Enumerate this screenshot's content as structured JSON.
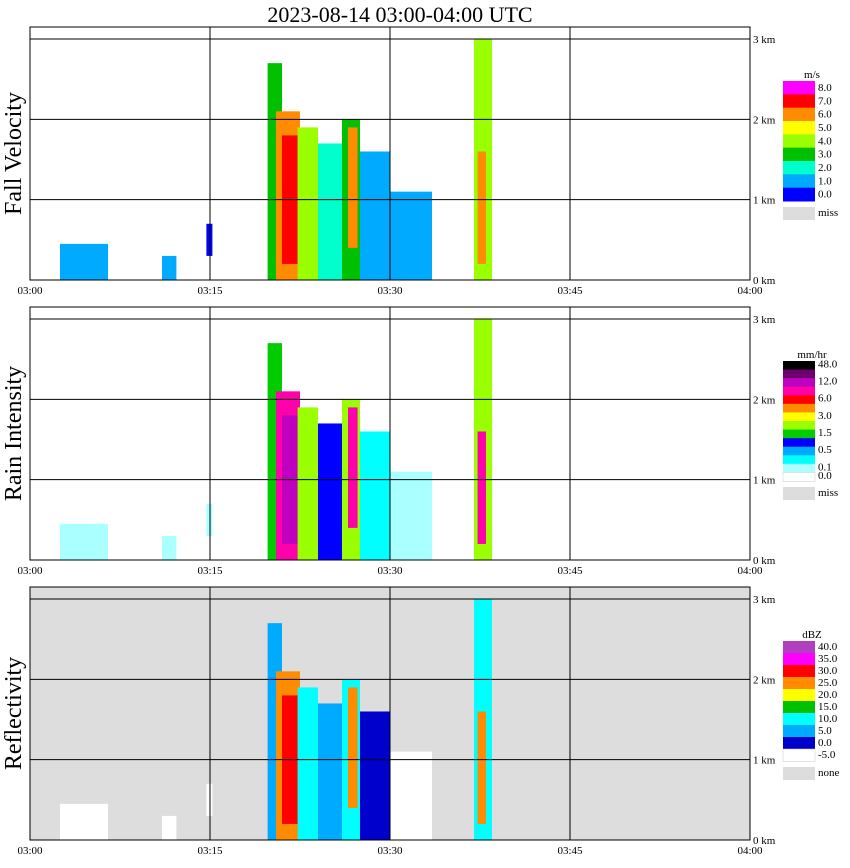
{
  "title": "2023-08-14   03:00-04:00 UTC",
  "x_ticks": [
    "03:00",
    "03:15",
    "03:30",
    "03:45",
    "04:00"
  ],
  "y_ticks": [
    "0 km",
    "1 km",
    "2 km",
    "3 km"
  ],
  "chart_data": [
    {
      "type": "heatmap",
      "ylabel": "Fall Velocity",
      "unit": "m/s",
      "x_range_min": [
        0,
        60
      ],
      "ylim_km": [
        0,
        3.15
      ],
      "background": "#ffffff",
      "scale": [
        {
          "label": "8.0",
          "color": "#ff00ff"
        },
        {
          "label": "7.0",
          "color": "#ff0000"
        },
        {
          "label": "6.0",
          "color": "#ff8c00"
        },
        {
          "label": "5.0",
          "color": "#ffff00"
        },
        {
          "label": "4.0",
          "color": "#9aff00"
        },
        {
          "label": "3.0",
          "color": "#00c000"
        },
        {
          "label": "2.0",
          "color": "#00ffcc"
        },
        {
          "label": "1.0",
          "color": "#00aaff"
        },
        {
          "label": "0.0",
          "color": "#0000ff"
        }
      ],
      "missing_label": "miss",
      "missing_color": "#dddddd"
    },
    {
      "type": "heatmap",
      "ylabel": "Rain Intensity",
      "unit": "mm/hr",
      "x_range_min": [
        0,
        60
      ],
      "ylim_km": [
        0,
        3.15
      ],
      "background": "#ffffff",
      "scale": [
        {
          "label": "48.0",
          "color": "#000000"
        },
        {
          "label": "",
          "color": "#700070"
        },
        {
          "label": "12.0",
          "color": "#c000c0"
        },
        {
          "label": "",
          "color": "#ff00aa"
        },
        {
          "label": "6.0",
          "color": "#ff0000"
        },
        {
          "label": "",
          "color": "#ff8c00"
        },
        {
          "label": "3.0",
          "color": "#ffff00"
        },
        {
          "label": "",
          "color": "#9aff00"
        },
        {
          "label": "1.5",
          "color": "#00cc00"
        },
        {
          "label": "",
          "color": "#0000ff"
        },
        {
          "label": "0.5",
          "color": "#00aaff"
        },
        {
          "label": "",
          "color": "#00ffff"
        },
        {
          "label": "0.1",
          "color": "#aaffff"
        },
        {
          "label": "0.0",
          "color": "#ffffff"
        }
      ],
      "missing_label": "miss",
      "missing_color": "#dddddd"
    },
    {
      "type": "heatmap",
      "ylabel": "Reflectivity",
      "unit": "dBZ",
      "x_range_min": [
        0,
        60
      ],
      "ylim_km": [
        0,
        3.15
      ],
      "background": "#dddddd",
      "scale": [
        {
          "label": "40.0",
          "color": "#b040c0"
        },
        {
          "label": "35.0",
          "color": "#ff00ff"
        },
        {
          "label": "30.0",
          "color": "#ff0000"
        },
        {
          "label": "25.0",
          "color": "#ff8c00"
        },
        {
          "label": "20.0",
          "color": "#ffff00"
        },
        {
          "label": "15.0",
          "color": "#00c000"
        },
        {
          "label": "10.0",
          "color": "#00ffff"
        },
        {
          "label": "5.0",
          "color": "#00aaff"
        },
        {
          "label": "0.0",
          "color": "#0000cc"
        },
        {
          "label": "-5.0",
          "color": "#ffffff"
        }
      ],
      "missing_label": "none",
      "missing_color": "#dddddd"
    }
  ],
  "cells": [
    {
      "x0": 2.5,
      "x1": 6.5,
      "y0": 0.0,
      "y1": 0.45,
      "v": 0.6
    },
    {
      "x0": 11,
      "x1": 12.2,
      "y0": 0.0,
      "y1": 0.3,
      "v": 0.6
    },
    {
      "x0": 14.7,
      "x1": 15.2,
      "y0": 0.3,
      "y1": 0.7,
      "v": 0.5
    },
    {
      "x0": 19.8,
      "x1": 21,
      "y0": 0.0,
      "y1": 2.7,
      "v": 3.0
    },
    {
      "x0": 20.5,
      "x1": 22.5,
      "y0": 0.0,
      "y1": 2.1,
      "v": 6.0
    },
    {
      "x0": 21.0,
      "x1": 22.3,
      "y0": 0.2,
      "y1": 1.8,
      "v": 7.0
    },
    {
      "x0": 22.3,
      "x1": 24.0,
      "y0": 0.0,
      "y1": 1.9,
      "v": 4.0
    },
    {
      "x0": 24.0,
      "x1": 26.0,
      "y0": 0.0,
      "y1": 1.7,
      "v": 2.5
    },
    {
      "x0": 26.0,
      "x1": 27.5,
      "y0": 0.0,
      "y1": 2.0,
      "v": 3.5
    },
    {
      "x0": 26.5,
      "x1": 27.3,
      "y0": 0.4,
      "y1": 1.9,
      "v": 6.0
    },
    {
      "x0": 27.5,
      "x1": 30.0,
      "y0": 0.0,
      "y1": 1.6,
      "v": 1.5
    },
    {
      "x0": 30.0,
      "x1": 33.5,
      "y0": 0.0,
      "y1": 1.1,
      "v": 0.6
    },
    {
      "x0": 37.0,
      "x1": 38.5,
      "y0": 0.0,
      "y1": 3.0,
      "v": 4.0
    },
    {
      "x0": 37.3,
      "x1": 38.0,
      "y0": 0.2,
      "y1": 1.6,
      "v": 6.0
    }
  ],
  "colors": {
    "grid": "#000000",
    "frame": "#000000",
    "tick_marker": "#00a000"
  }
}
